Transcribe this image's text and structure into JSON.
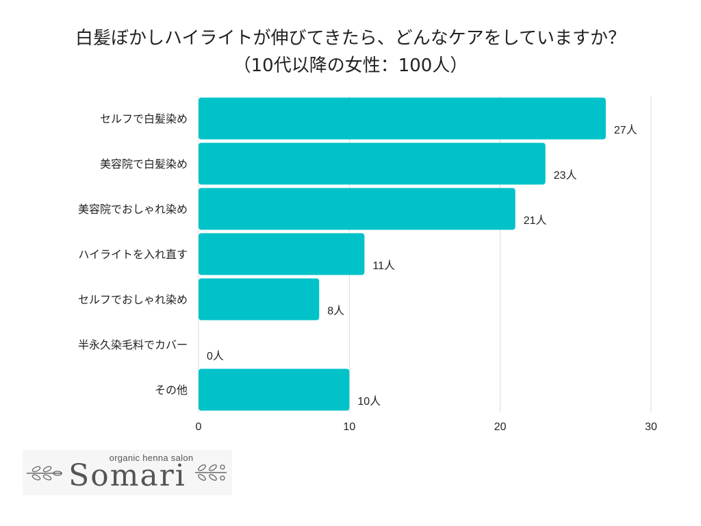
{
  "chart_data": {
    "type": "bar",
    "orientation": "horizontal",
    "title_line1": "白髪ぼかしハイライトが伸びてきたら、どんなケアをしていますか？",
    "title_line2": "（10代以降の女性：100人）",
    "categories": [
      "セルフで白髪染め",
      "美容院で白髪染め",
      "美容院でおしゃれ染め",
      "ハイライトを入れ直す",
      "セルフでおしゃれ染め",
      "半永久染毛料でカバー",
      "その他"
    ],
    "values": [
      27,
      23,
      21,
      11,
      8,
      0,
      10
    ],
    "value_labels": [
      "27人",
      "23人",
      "21人",
      "11人",
      "8人",
      "0人",
      "10人"
    ],
    "xlim": [
      0,
      30
    ],
    "xticks": [
      "0",
      "10",
      "20",
      "30"
    ],
    "grid": true,
    "bar_color": "#00c2c8"
  },
  "logo": {
    "subtitle": "organic henna salon",
    "name": "Somari"
  }
}
